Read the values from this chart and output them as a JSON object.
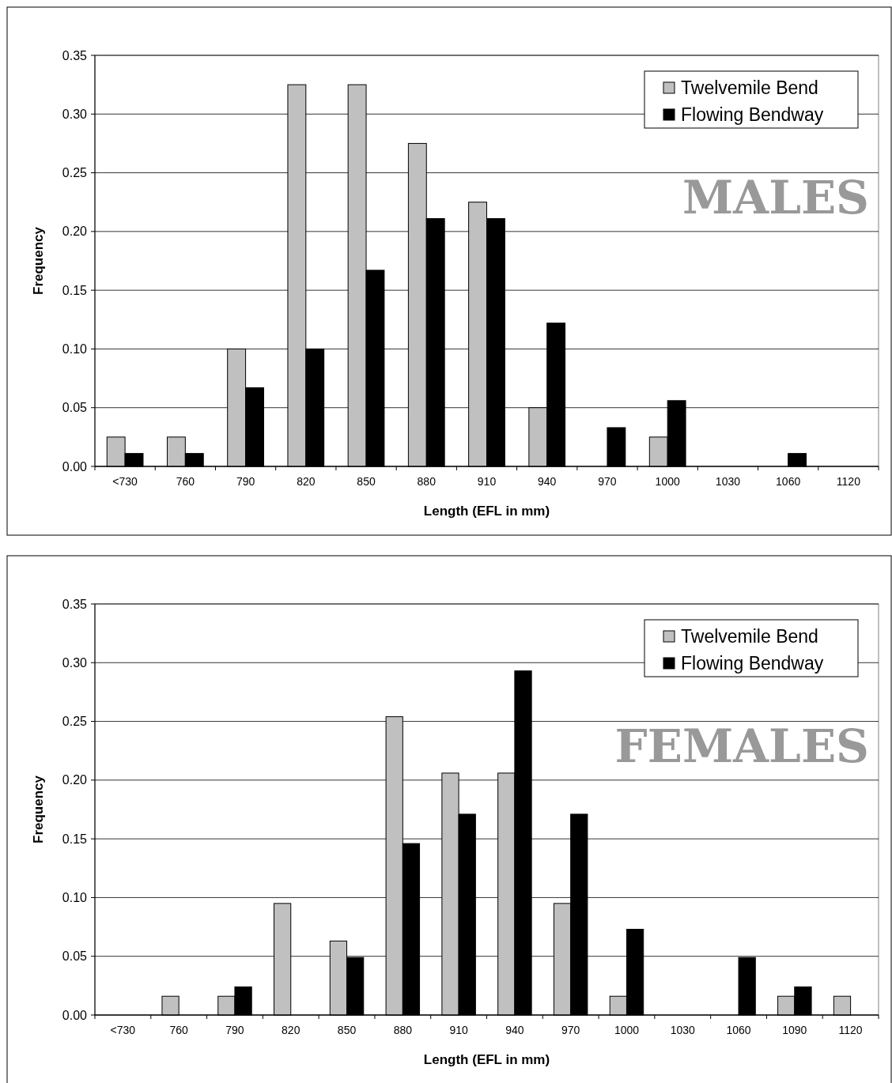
{
  "chart_data": [
    {
      "type": "bar",
      "categories": [
        "<730",
        "760",
        "790",
        "820",
        "850",
        "880",
        "910",
        "940",
        "970",
        "1000",
        "1030",
        "1060",
        "1120"
      ],
      "series": [
        {
          "name": "Twelvemile Bend",
          "color": "#c0c0c0",
          "values": [
            0.025,
            0.025,
            0.1,
            0.325,
            0.325,
            0.275,
            0.225,
            0.05,
            0,
            0.025,
            0,
            0,
            0
          ]
        },
        {
          "name": "Flowing Bendway",
          "color": "#000000",
          "values": [
            0.011,
            0.011,
            0.067,
            0.1,
            0.167,
            0.211,
            0.211,
            0.122,
            0.033,
            0.056,
            0,
            0.011,
            0
          ]
        }
      ],
      "xlabel": "Length (EFL in mm)",
      "ylabel": "Frequency",
      "ylim": [
        0,
        0.35
      ],
      "yticks": [
        {
          "value": 0,
          "label": "0.00"
        },
        {
          "value": 0.05,
          "label": "0.05"
        },
        {
          "value": 0.1,
          "label": "0.10"
        },
        {
          "value": 0.15,
          "label": "0.15"
        },
        {
          "value": 0.2,
          "label": "0.20"
        },
        {
          "value": 0.25,
          "label": "0.25"
        },
        {
          "value": 0.3,
          "label": "0.30"
        },
        {
          "value": 0.35,
          "label": "0.35"
        }
      ],
      "grid": "y",
      "legend": "top right",
      "annotations": [
        "MALES"
      ]
    },
    {
      "type": "bar",
      "categories": [
        "<730",
        "760",
        "790",
        "820",
        "850",
        "880",
        "910",
        "940",
        "970",
        "1000",
        "1030",
        "1060",
        "1090",
        "1120"
      ],
      "series": [
        {
          "name": "Twelvemile Bend",
          "color": "#c0c0c0",
          "values": [
            0,
            0.016,
            0.016,
            0.095,
            0.063,
            0.254,
            0.206,
            0.206,
            0.095,
            0.016,
            0,
            0,
            0.016,
            0.016
          ]
        },
        {
          "name": "Flowing Bendway",
          "color": "#000000",
          "values": [
            0,
            0,
            0.024,
            0,
            0.049,
            0.146,
            0.171,
            0.293,
            0.171,
            0.073,
            0,
            0.049,
            0.024,
            0
          ]
        }
      ],
      "xlabel": "Length (EFL in mm)",
      "ylabel": "Frequency",
      "ylim": [
        0,
        0.35
      ],
      "yticks": [
        {
          "value": 0,
          "label": "0.00"
        },
        {
          "value": 0.05,
          "label": "0.05"
        },
        {
          "value": 0.1,
          "label": "0.10"
        },
        {
          "value": 0.15,
          "label": "0.15"
        },
        {
          "value": 0.2,
          "label": "0.20"
        },
        {
          "value": 0.25,
          "label": "0.25"
        },
        {
          "value": 0.3,
          "label": "0.30"
        },
        {
          "value": 0.35,
          "label": "0.35"
        }
      ],
      "grid": "y",
      "legend": "top right",
      "annotations": [
        "FEMALES"
      ]
    }
  ]
}
